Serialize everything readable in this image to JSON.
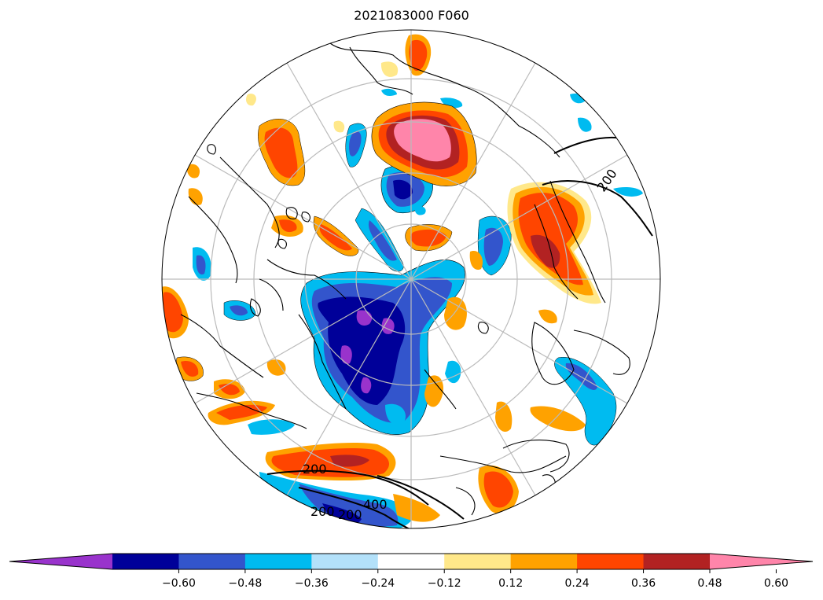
{
  "title": "2021083000 F060",
  "colorbar": {
    "colors": [
      "#9933cc",
      "#000099",
      "#3355cc",
      "#00bbf0",
      "#b3e1fa",
      "#ffffff",
      "#ffe88a",
      "#ffa200",
      "#ff4500",
      "#b22222",
      "#ff85aa"
    ],
    "tick_labels": [
      "−0.60",
      "−0.48",
      "−0.36",
      "−0.24",
      "−0.12",
      "0.12",
      "0.24",
      "0.36",
      "0.48",
      "0.60"
    ],
    "extend": "both"
  },
  "contours": {
    "labels": [
      "200",
      "200",
      "400",
      "200",
      "200"
    ]
  },
  "projection": "north-polar-stereographic"
}
